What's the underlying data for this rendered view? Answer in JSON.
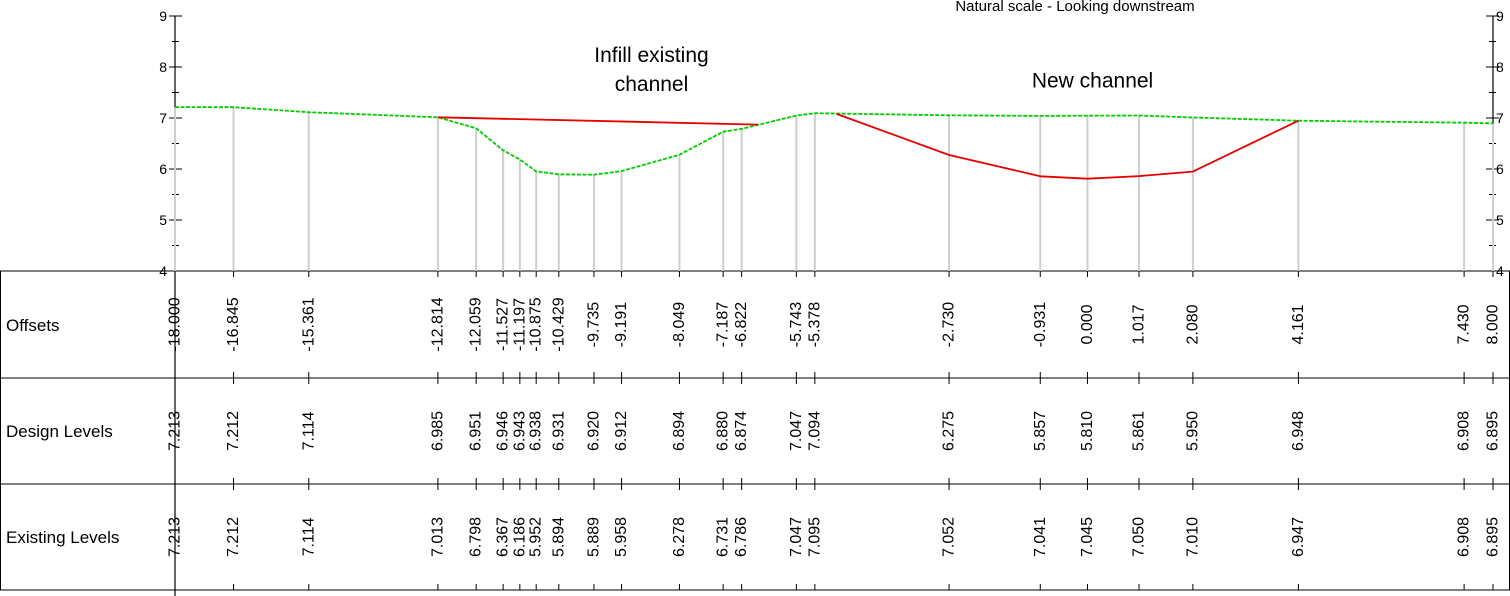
{
  "chart_data": {
    "type": "line",
    "title": "Natural scale - Looking downstream",
    "xlabel": "",
    "ylabel": "",
    "xlim": [
      -18.0,
      8.0
    ],
    "ylim": [
      4,
      9
    ],
    "y_ticks": [
      4,
      5,
      6,
      7,
      8,
      9
    ],
    "grid": false,
    "annotations": [
      {
        "text_lines": [
          "Infill existing",
          "channel"
        ],
        "x": -8.6,
        "y": 8.1
      },
      {
        "text_lines": [
          "New channel"
        ],
        "x": 0.1,
        "y": 7.6
      }
    ],
    "row_labels": [
      "Offsets",
      "Design Levels",
      "Existing Levels"
    ],
    "x": [
      -18.0,
      -16.845,
      -15.361,
      -12.814,
      -12.059,
      -11.527,
      -11.197,
      -10.875,
      -10.429,
      -9.735,
      -9.191,
      -8.049,
      -7.187,
      -6.822,
      -5.743,
      -5.378,
      -2.73,
      -0.931,
      0.0,
      1.017,
      2.08,
      4.161,
      7.43,
      8.0
    ],
    "offset_labels": [
      "-18.000",
      "-16.845",
      "-15.361",
      "-12.814",
      "-12.059",
      "-11.527",
      "-11.197",
      "-10.875",
      "-10.429",
      "-9.735",
      "-9.191",
      "-8.049",
      "-7.187",
      "-6.822",
      "-5.743",
      "-5.378",
      "-2.730",
      "-0.931",
      "0.000",
      "1.017",
      "2.080",
      "4.161",
      "7.430",
      "8.000"
    ],
    "design_labels": [
      "7.213",
      "7.212",
      "7.114",
      "6.985",
      "6.951",
      "6.946",
      "6.943",
      "6.938",
      "6.931",
      "6.920",
      "6.912",
      "6.894",
      "6.880",
      "6.874",
      "7.047",
      "7.094",
      "6.275",
      "5.857",
      "5.810",
      "5.861",
      "5.950",
      "6.948",
      "6.908",
      "6.895"
    ],
    "existing_labels": [
      "7.213",
      "7.212",
      "7.114",
      "7.013",
      "6.798",
      "6.367",
      "6.186",
      "5.952",
      "5.894",
      "5.889",
      "5.958",
      "6.278",
      "6.731",
      "6.786",
      "7.047",
      "7.095",
      "7.052",
      "7.041",
      "7.045",
      "7.050",
      "7.010",
      "6.947",
      "6.908",
      "6.895"
    ],
    "series": [
      {
        "name": "Existing Levels",
        "color": "#00cc00",
        "style": "dashed",
        "x": [
          -18.0,
          -16.845,
          -15.361,
          -12.814,
          -12.059,
          -11.527,
          -11.197,
          -10.875,
          -10.429,
          -9.735,
          -9.191,
          -8.049,
          -7.187,
          -6.822,
          -5.743,
          -5.378,
          -2.73,
          -0.931,
          0.0,
          1.017,
          2.08,
          4.161,
          7.43,
          8.0
        ],
        "values": [
          7.213,
          7.212,
          7.114,
          7.013,
          6.798,
          6.367,
          6.186,
          5.952,
          5.894,
          5.889,
          5.958,
          6.278,
          6.731,
          6.786,
          7.047,
          7.095,
          7.052,
          7.041,
          7.045,
          7.05,
          7.01,
          6.947,
          6.908,
          6.895
        ]
      },
      {
        "name": "Design Levels - infill existing channel",
        "color": "#e60000",
        "style": "solid",
        "x": [
          -12.814,
          -6.5
        ],
        "values": [
          7.013,
          6.87
        ]
      },
      {
        "name": "Design Levels - new channel",
        "color": "#e60000",
        "style": "solid",
        "x": [
          -4.95,
          -2.73,
          -0.931,
          0.0,
          1.017,
          2.08,
          4.161
        ],
        "values": [
          7.08,
          6.275,
          5.857,
          5.81,
          5.861,
          5.95,
          6.948
        ]
      }
    ]
  }
}
